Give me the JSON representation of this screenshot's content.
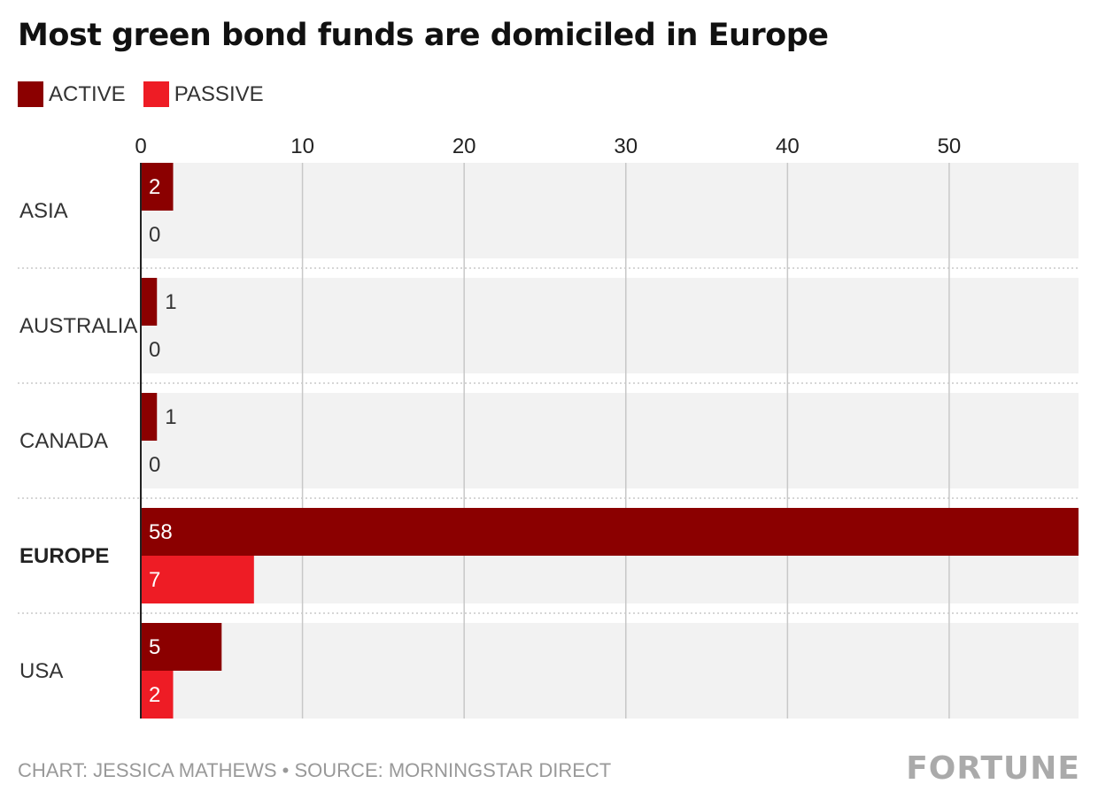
{
  "title": "Most green bond funds are domiciled in Europe",
  "footer": {
    "credit": "CHART: JESSICA MATHEWS • SOURCE: MORNINGSTAR DIRECT",
    "logo": "FORTUNE"
  },
  "colors": {
    "active": "#8b0000",
    "passive": "#ee1c25",
    "band": "#f2f2f2",
    "grid": "#c8c8c8"
  },
  "chart_data": {
    "type": "bar",
    "orientation": "horizontal",
    "title": "Most green bond funds are domiciled in Europe",
    "categories": [
      "ASIA",
      "AUSTRALIA",
      "CANADA",
      "EUROPE",
      "USA"
    ],
    "highlight_category": "EUROPE",
    "series": [
      {
        "name": "ACTIVE",
        "values": [
          2,
          1,
          1,
          58,
          5
        ]
      },
      {
        "name": "PASSIVE",
        "values": [
          0,
          0,
          0,
          7,
          2
        ]
      }
    ],
    "xticks": [
      0,
      10,
      20,
      30,
      40,
      50
    ],
    "xlim": [
      0,
      58
    ],
    "grid": true,
    "legend": "top-left"
  }
}
